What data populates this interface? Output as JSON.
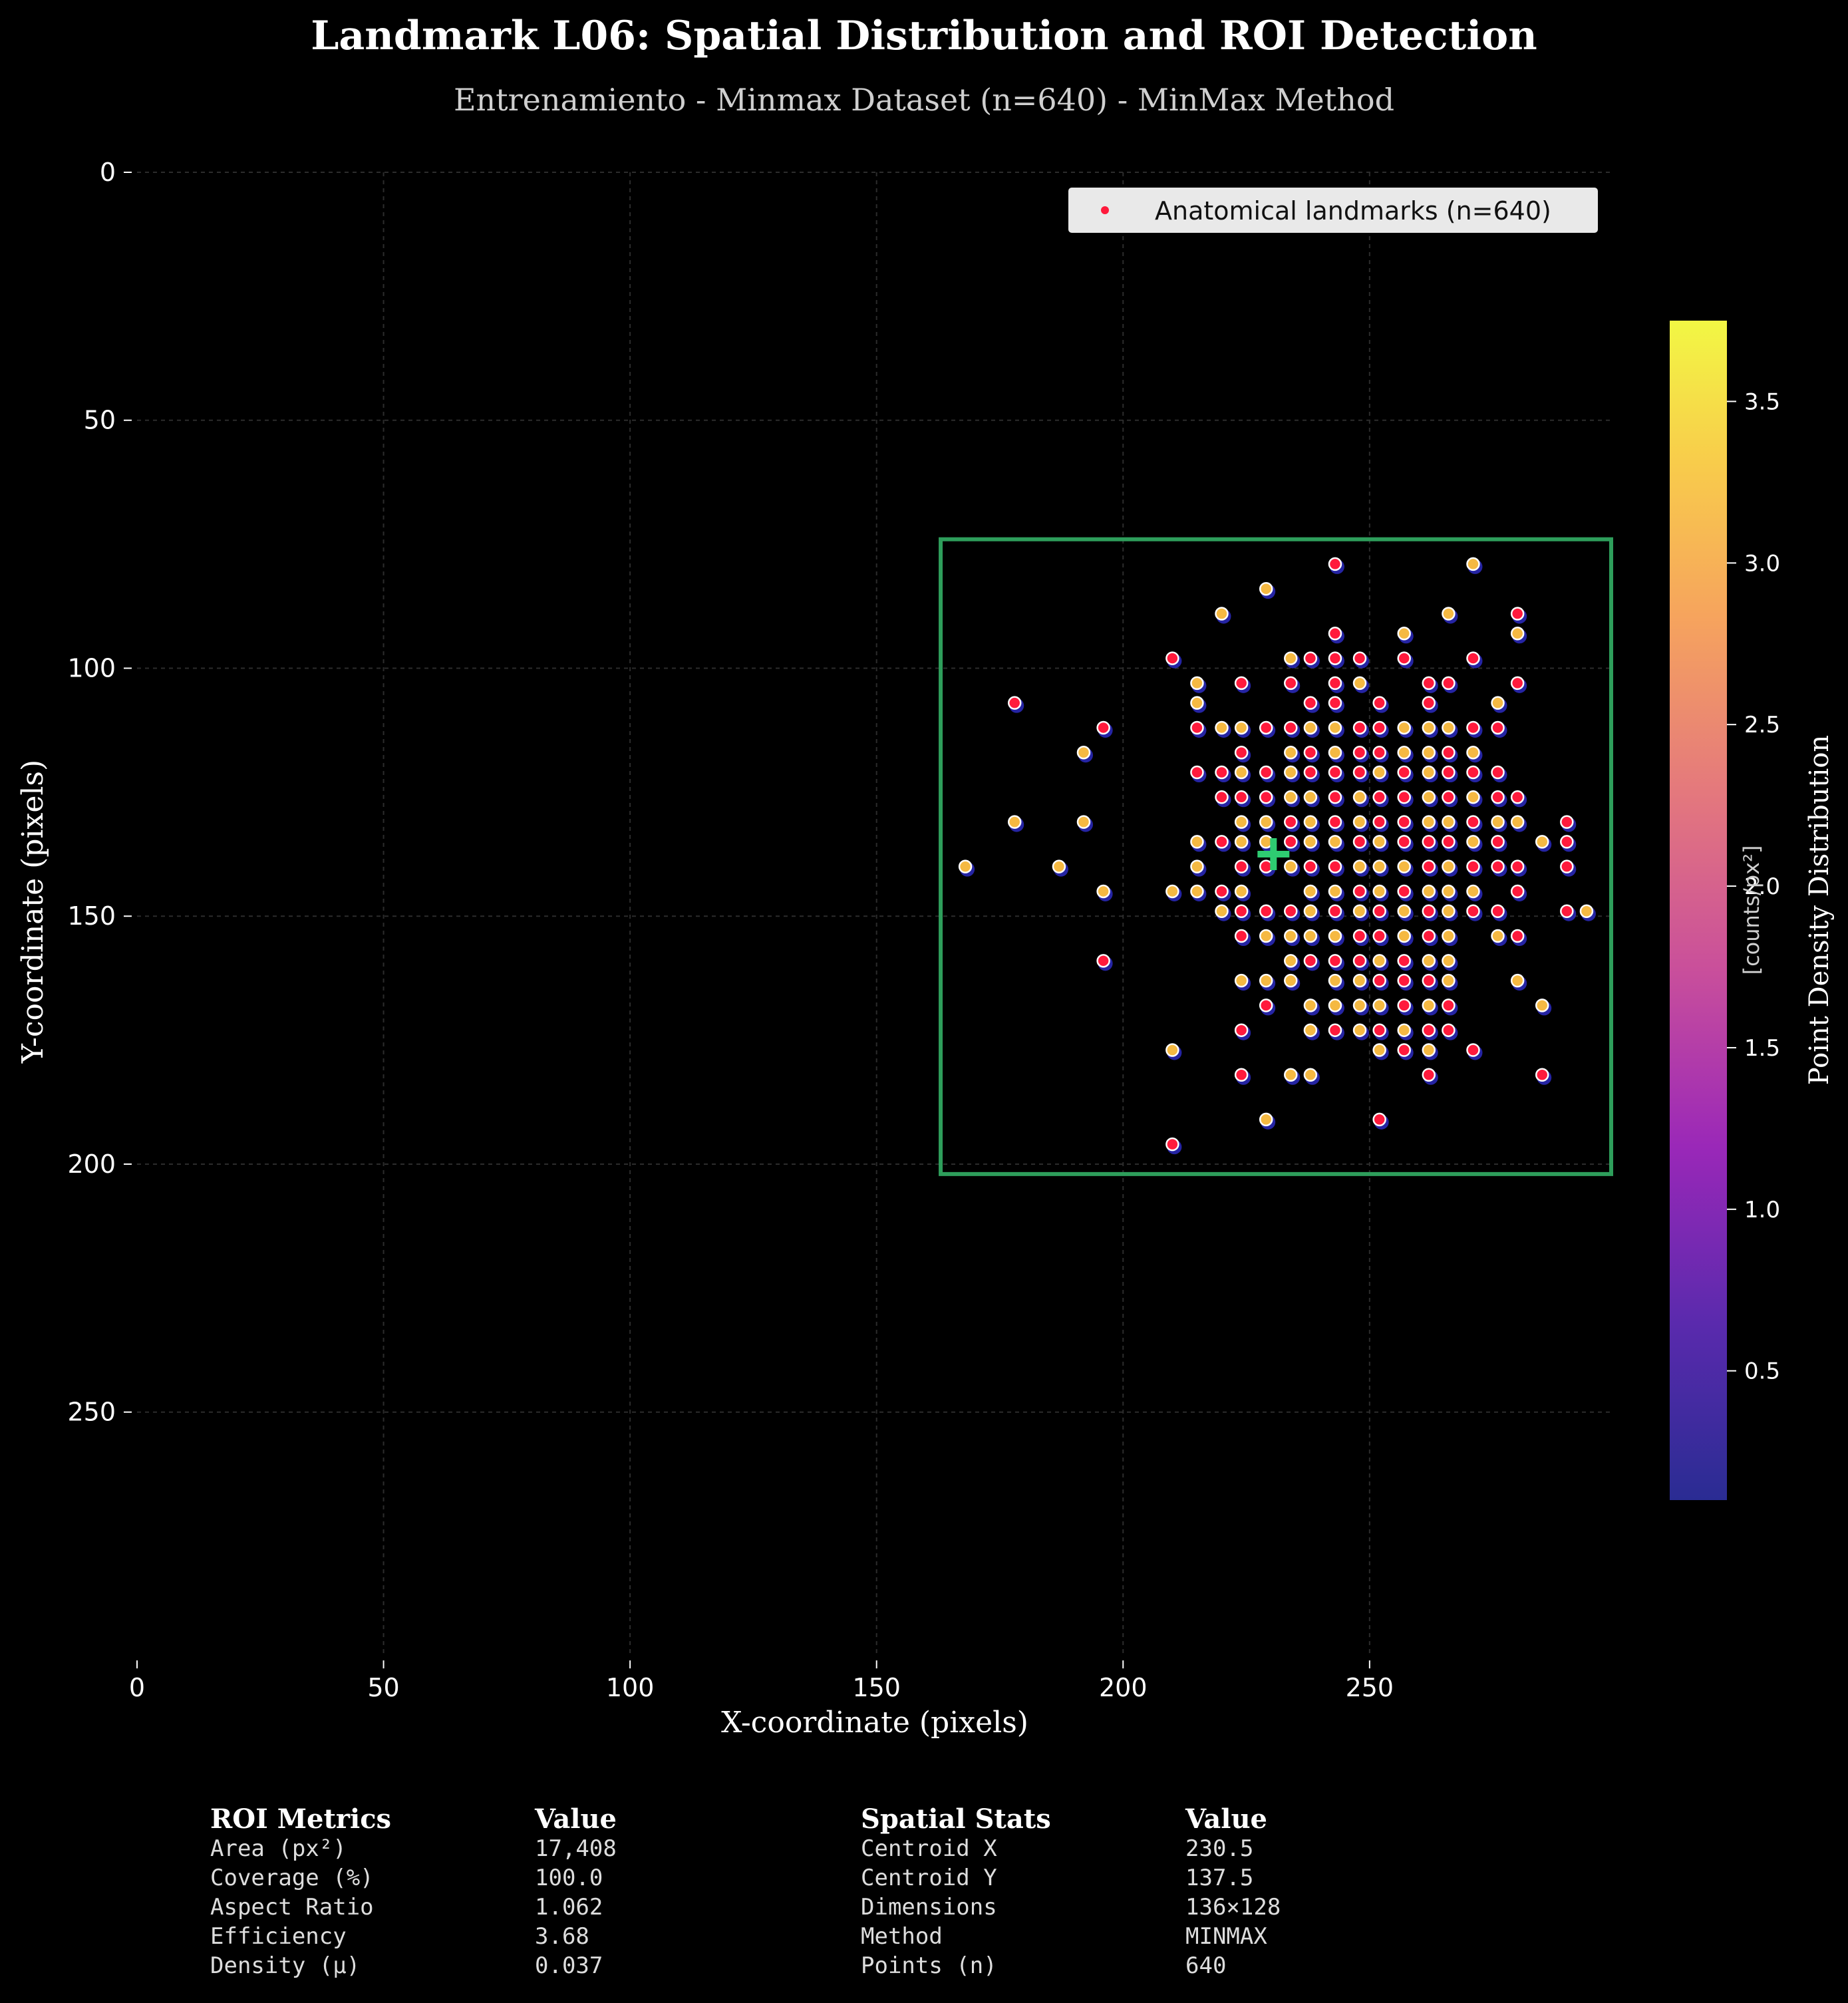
{
  "chart_data": {
    "type": "scatter",
    "title": "Landmark L06: Spatial Distribution and ROI Detection",
    "subtitle": "Entrenamiento - Minmax Dataset (n=640) - MinMax Method",
    "xlabel": "X-coordinate (pixels)",
    "ylabel": "Y-coordinate (pixels)",
    "xlim": [
      0,
      299
    ],
    "ylim": [
      299,
      0
    ],
    "y_inverted": true,
    "grid": true,
    "x_ticks": [
      0,
      50,
      100,
      150,
      200,
      250
    ],
    "y_ticks": [
      0,
      50,
      100,
      150,
      200,
      250
    ],
    "legend": {
      "label": "Anatomical landmarks (n=640)",
      "position": "top-right"
    },
    "roi": {
      "x_min": 163,
      "x_max": 299,
      "y_min": 74,
      "y_max": 202,
      "color": "#2e9e5b"
    },
    "centroid": {
      "x": 230.5,
      "y": 137.5,
      "color": "#2ecc71"
    },
    "colorbar": {
      "label": "Point Density Distribution",
      "unit_label": "[counts/px²]",
      "min": 0.1,
      "max": 3.75,
      "ticks": [
        0.5,
        1.0,
        1.5,
        2.0,
        2.5,
        3.0,
        3.5
      ],
      "tick_labels": [
        "0.5",
        "1.0",
        "1.5",
        "2.0",
        "2.5",
        "3.0",
        "3.5"
      ],
      "colormap": "plasma"
    },
    "point_colors": {
      "high": "#f5b942",
      "low": "#ff1a3c",
      "shadow": "#2c2ac0"
    },
    "points": [
      [
        243,
        79,
        0
      ],
      [
        271,
        79,
        1
      ],
      [
        229,
        84,
        1
      ],
      [
        220,
        89,
        1
      ],
      [
        266,
        89,
        1
      ],
      [
        280,
        89,
        0
      ],
      [
        243,
        93,
        0
      ],
      [
        257,
        93,
        1
      ],
      [
        280,
        93,
        1
      ],
      [
        210,
        98,
        0
      ],
      [
        234,
        98,
        1
      ],
      [
        238,
        98,
        0
      ],
      [
        243,
        98,
        0
      ],
      [
        248,
        98,
        0
      ],
      [
        257,
        98,
        0
      ],
      [
        271,
        98,
        0
      ],
      [
        215,
        103,
        1
      ],
      [
        224,
        103,
        0
      ],
      [
        234,
        103,
        0
      ],
      [
        243,
        103,
        0
      ],
      [
        248,
        103,
        1
      ],
      [
        262,
        103,
        0
      ],
      [
        266,
        103,
        0
      ],
      [
        280,
        103,
        0
      ],
      [
        178,
        107,
        0
      ],
      [
        215,
        107,
        1
      ],
      [
        238,
        107,
        0
      ],
      [
        243,
        107,
        0
      ],
      [
        252,
        107,
        0
      ],
      [
        262,
        107,
        0
      ],
      [
        276,
        107,
        1
      ],
      [
        196,
        112,
        0
      ],
      [
        215,
        112,
        0
      ],
      [
        220,
        112,
        1
      ],
      [
        224,
        112,
        1
      ],
      [
        229,
        112,
        0
      ],
      [
        234,
        112,
        0
      ],
      [
        238,
        112,
        1
      ],
      [
        243,
        112,
        1
      ],
      [
        248,
        112,
        0
      ],
      [
        252,
        112,
        0
      ],
      [
        257,
        112,
        1
      ],
      [
        262,
        112,
        1
      ],
      [
        266,
        112,
        1
      ],
      [
        271,
        112,
        0
      ],
      [
        276,
        112,
        0
      ],
      [
        192,
        117,
        1
      ],
      [
        224,
        117,
        0
      ],
      [
        234,
        117,
        1
      ],
      [
        238,
        117,
        0
      ],
      [
        243,
        117,
        1
      ],
      [
        248,
        117,
        0
      ],
      [
        252,
        117,
        0
      ],
      [
        257,
        117,
        1
      ],
      [
        262,
        117,
        1
      ],
      [
        266,
        117,
        0
      ],
      [
        271,
        117,
        1
      ],
      [
        215,
        121,
        0
      ],
      [
        220,
        121,
        0
      ],
      [
        224,
        121,
        1
      ],
      [
        229,
        121,
        0
      ],
      [
        234,
        121,
        1
      ],
      [
        238,
        121,
        0
      ],
      [
        243,
        121,
        0
      ],
      [
        248,
        121,
        0
      ],
      [
        252,
        121,
        1
      ],
      [
        257,
        121,
        0
      ],
      [
        262,
        121,
        1
      ],
      [
        266,
        121,
        0
      ],
      [
        271,
        121,
        0
      ],
      [
        276,
        121,
        0
      ],
      [
        220,
        126,
        0
      ],
      [
        224,
        126,
        0
      ],
      [
        229,
        126,
        0
      ],
      [
        234,
        126,
        1
      ],
      [
        238,
        126,
        1
      ],
      [
        243,
        126,
        0
      ],
      [
        248,
        126,
        1
      ],
      [
        252,
        126,
        0
      ],
      [
        257,
        126,
        0
      ],
      [
        262,
        126,
        1
      ],
      [
        266,
        126,
        0
      ],
      [
        271,
        126,
        1
      ],
      [
        276,
        126,
        0
      ],
      [
        280,
        126,
        0
      ],
      [
        178,
        131,
        1
      ],
      [
        192,
        131,
        1
      ],
      [
        224,
        131,
        1
      ],
      [
        229,
        131,
        1
      ],
      [
        234,
        131,
        0
      ],
      [
        238,
        131,
        1
      ],
      [
        243,
        131,
        0
      ],
      [
        248,
        131,
        1
      ],
      [
        252,
        131,
        0
      ],
      [
        257,
        131,
        0
      ],
      [
        262,
        131,
        1
      ],
      [
        266,
        131,
        1
      ],
      [
        271,
        131,
        0
      ],
      [
        276,
        131,
        1
      ],
      [
        280,
        131,
        1
      ],
      [
        290,
        131,
        0
      ],
      [
        215,
        135,
        1
      ],
      [
        220,
        135,
        0
      ],
      [
        224,
        135,
        1
      ],
      [
        229,
        135,
        1
      ],
      [
        234,
        135,
        0
      ],
      [
        238,
        135,
        1
      ],
      [
        243,
        135,
        1
      ],
      [
        248,
        135,
        0
      ],
      [
        252,
        135,
        1
      ],
      [
        257,
        135,
        0
      ],
      [
        262,
        135,
        0
      ],
      [
        266,
        135,
        0
      ],
      [
        271,
        135,
        1
      ],
      [
        276,
        135,
        0
      ],
      [
        285,
        135,
        1
      ],
      [
        290,
        135,
        0
      ],
      [
        168,
        140,
        1
      ],
      [
        187,
        140,
        1
      ],
      [
        215,
        140,
        1
      ],
      [
        224,
        140,
        0
      ],
      [
        229,
        140,
        0
      ],
      [
        234,
        140,
        1
      ],
      [
        238,
        140,
        0
      ],
      [
        243,
        140,
        0
      ],
      [
        248,
        140,
        1
      ],
      [
        252,
        140,
        1
      ],
      [
        257,
        140,
        1
      ],
      [
        262,
        140,
        0
      ],
      [
        266,
        140,
        1
      ],
      [
        271,
        140,
        0
      ],
      [
        276,
        140,
        0
      ],
      [
        280,
        140,
        0
      ],
      [
        290,
        140,
        0
      ],
      [
        196,
        145,
        1
      ],
      [
        210,
        145,
        1
      ],
      [
        215,
        145,
        1
      ],
      [
        220,
        145,
        0
      ],
      [
        224,
        145,
        1
      ],
      [
        238,
        145,
        1
      ],
      [
        243,
        145,
        1
      ],
      [
        248,
        145,
        0
      ],
      [
        252,
        145,
        1
      ],
      [
        257,
        145,
        0
      ],
      [
        262,
        145,
        1
      ],
      [
        266,
        145,
        1
      ],
      [
        271,
        145,
        1
      ],
      [
        280,
        145,
        0
      ],
      [
        220,
        149,
        1
      ],
      [
        224,
        149,
        0
      ],
      [
        229,
        149,
        0
      ],
      [
        234,
        149,
        0
      ],
      [
        238,
        149,
        1
      ],
      [
        243,
        149,
        0
      ],
      [
        248,
        149,
        1
      ],
      [
        252,
        149,
        0
      ],
      [
        257,
        149,
        1
      ],
      [
        262,
        149,
        0
      ],
      [
        266,
        149,
        1
      ],
      [
        271,
        149,
        0
      ],
      [
        276,
        149,
        0
      ],
      [
        290,
        149,
        0
      ],
      [
        294,
        149,
        1
      ],
      [
        224,
        154,
        0
      ],
      [
        229,
        154,
        1
      ],
      [
        234,
        154,
        1
      ],
      [
        238,
        154,
        1
      ],
      [
        243,
        154,
        1
      ],
      [
        248,
        154,
        0
      ],
      [
        252,
        154,
        0
      ],
      [
        257,
        154,
        1
      ],
      [
        262,
        154,
        0
      ],
      [
        266,
        154,
        1
      ],
      [
        276,
        154,
        1
      ],
      [
        280,
        154,
        0
      ],
      [
        196,
        159,
        0
      ],
      [
        234,
        159,
        1
      ],
      [
        238,
        159,
        0
      ],
      [
        243,
        159,
        0
      ],
      [
        248,
        159,
        0
      ],
      [
        252,
        159,
        1
      ],
      [
        257,
        159,
        0
      ],
      [
        262,
        159,
        1
      ],
      [
        266,
        159,
        1
      ],
      [
        224,
        163,
        1
      ],
      [
        229,
        163,
        1
      ],
      [
        234,
        163,
        1
      ],
      [
        243,
        163,
        1
      ],
      [
        248,
        163,
        1
      ],
      [
        252,
        163,
        0
      ],
      [
        257,
        163,
        0
      ],
      [
        262,
        163,
        0
      ],
      [
        266,
        163,
        1
      ],
      [
        280,
        163,
        1
      ],
      [
        229,
        168,
        0
      ],
      [
        238,
        168,
        1
      ],
      [
        243,
        168,
        1
      ],
      [
        248,
        168,
        1
      ],
      [
        252,
        168,
        1
      ],
      [
        257,
        168,
        0
      ],
      [
        262,
        168,
        1
      ],
      [
        266,
        168,
        0
      ],
      [
        285,
        168,
        1
      ],
      [
        224,
        173,
        0
      ],
      [
        238,
        173,
        1
      ],
      [
        243,
        173,
        0
      ],
      [
        248,
        173,
        1
      ],
      [
        252,
        173,
        0
      ],
      [
        257,
        173,
        1
      ],
      [
        262,
        173,
        0
      ],
      [
        266,
        173,
        0
      ],
      [
        210,
        177,
        1
      ],
      [
        252,
        177,
        1
      ],
      [
        257,
        177,
        0
      ],
      [
        262,
        177,
        1
      ],
      [
        271,
        177,
        0
      ],
      [
        224,
        182,
        0
      ],
      [
        234,
        182,
        1
      ],
      [
        238,
        182,
        1
      ],
      [
        262,
        182,
        0
      ],
      [
        285,
        182,
        0
      ],
      [
        229,
        191,
        1
      ],
      [
        252,
        191,
        0
      ],
      [
        210,
        196,
        0
      ]
    ]
  },
  "tables": {
    "roi": {
      "header_label": "ROI Metrics",
      "header_value": "Value",
      "rows": [
        {
          "label": "Area (px²)",
          "value": "17,408"
        },
        {
          "label": "Coverage (%)",
          "value": "100.0"
        },
        {
          "label": "Aspect Ratio",
          "value": "1.062"
        },
        {
          "label": "Efficiency",
          "value": "3.68"
        },
        {
          "label": "Density (μ)",
          "value": "0.037"
        }
      ]
    },
    "spatial": {
      "header_label": "Spatial Stats",
      "header_value": "Value",
      "rows": [
        {
          "label": "Centroid X",
          "value": "230.5"
        },
        {
          "label": "Centroid Y",
          "value": "137.5"
        },
        {
          "label": "Dimensions",
          "value": "136×128"
        },
        {
          "label": "Method",
          "value": "MINMAX"
        },
        {
          "label": "Points (n)",
          "value": "640"
        }
      ]
    }
  }
}
